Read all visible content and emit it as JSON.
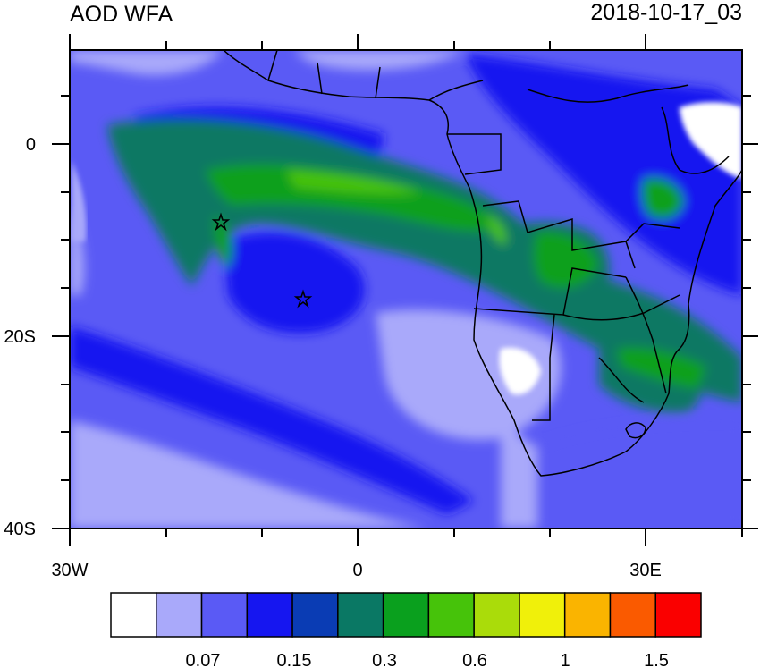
{
  "header": {
    "title": "AOD WFA",
    "datetime": "2018-10-17_03"
  },
  "map": {
    "lon_labels": [
      "30W",
      "0",
      "30E"
    ],
    "lat_labels": [
      "0",
      "20S",
      "40S"
    ],
    "markers": [
      {
        "name": "star",
        "lon": -14.5,
        "lat": -8
      },
      {
        "name": "star",
        "lon": -5.5,
        "lat": -16
      }
    ]
  },
  "colorbar": {
    "labels": [
      "0.07",
      "0.15",
      "0.3",
      "0.6",
      "1",
      "1.5"
    ],
    "colors": [
      "#ffffff",
      "#a9a9fa",
      "#5a5af5",
      "#1616f0",
      "#0a3cb4",
      "#0a7864",
      "#0aa01e",
      "#46c30a",
      "#aadc0a",
      "#f0f00a",
      "#fab400",
      "#fa5a00",
      "#fa0000"
    ]
  }
}
